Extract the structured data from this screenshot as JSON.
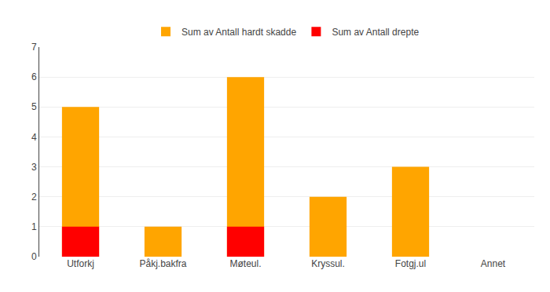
{
  "chart_data": {
    "type": "bar",
    "categories": [
      "Utforkj",
      "Påkj.bakfra",
      "Møteul.",
      "Kryssul.",
      "Fotgj.ul",
      "Annet"
    ],
    "series": [
      {
        "name": "Sum av Antall hardt skadde",
        "color": "#FFA500",
        "values": [
          5,
          1,
          6,
          2,
          3,
          0
        ]
      },
      {
        "name": "Sum av Antall drepte",
        "color": "#FF0000",
        "values": [
          1,
          0,
          1,
          0,
          0,
          0
        ]
      }
    ],
    "stacked": false,
    "ylim": [
      0,
      7
    ],
    "yticks": [
      0,
      1,
      2,
      3,
      4,
      5,
      6,
      7
    ],
    "grid": true,
    "legend": "top"
  }
}
